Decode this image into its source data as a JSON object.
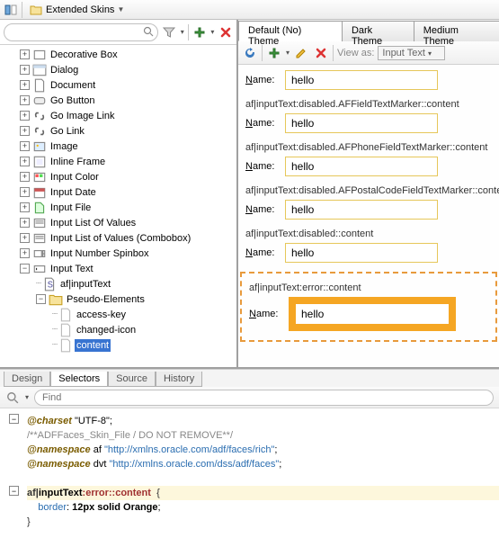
{
  "topbar": {
    "breadcrumb_label": "Extended Skins"
  },
  "left": {
    "search_placeholder": "",
    "tree": [
      {
        "depth": 0,
        "exp": "+",
        "icon": "box",
        "label": "Decorative Box"
      },
      {
        "depth": 0,
        "exp": "+",
        "icon": "dialog",
        "label": "Dialog"
      },
      {
        "depth": 0,
        "exp": "+",
        "icon": "doc",
        "label": "Document"
      },
      {
        "depth": 0,
        "exp": "+",
        "icon": "btn",
        "label": "Go Button"
      },
      {
        "depth": 0,
        "exp": "+",
        "icon": "link",
        "label": "Go Image Link"
      },
      {
        "depth": 0,
        "exp": "+",
        "icon": "link",
        "label": "Go Link"
      },
      {
        "depth": 0,
        "exp": "+",
        "icon": "img",
        "label": "Image"
      },
      {
        "depth": 0,
        "exp": "+",
        "icon": "frame",
        "label": "Inline Frame"
      },
      {
        "depth": 0,
        "exp": "+",
        "icon": "color",
        "label": "Input Color"
      },
      {
        "depth": 0,
        "exp": "+",
        "icon": "date",
        "label": "Input Date"
      },
      {
        "depth": 0,
        "exp": "+",
        "icon": "file",
        "label": "Input File"
      },
      {
        "depth": 0,
        "exp": "+",
        "icon": "list",
        "label": "Input List Of Values"
      },
      {
        "depth": 0,
        "exp": "+",
        "icon": "list",
        "label": "Input List of Values (Combobox)"
      },
      {
        "depth": 0,
        "exp": "+",
        "icon": "spin",
        "label": "Input Number Spinbox"
      },
      {
        "depth": 0,
        "exp": "-",
        "icon": "text",
        "label": "Input Text"
      },
      {
        "depth": 1,
        "exp": "",
        "icon": "sel",
        "label": "af|inputText"
      },
      {
        "depth": 1,
        "exp": "-",
        "icon": "folder",
        "label": "Pseudo-Elements"
      },
      {
        "depth": 2,
        "exp": "",
        "icon": "leaf",
        "label": "access-key"
      },
      {
        "depth": 2,
        "exp": "",
        "icon": "leaf",
        "label": "changed-icon"
      },
      {
        "depth": 2,
        "exp": "",
        "icon": "leaf",
        "label": "content",
        "selected": true
      }
    ]
  },
  "right": {
    "tabs": [
      "Default (No) Theme",
      "Dark Theme",
      "Medium Theme"
    ],
    "active_tab": 0,
    "viewas_label": "View as:",
    "viewas_value": "Input Text",
    "groups": [
      {
        "selector": "",
        "label": "Name:",
        "value": "hello",
        "style": "yellow"
      },
      {
        "selector": "af|inputText:disabled.AFFieldTextMarker::content",
        "label": "Name:",
        "value": "hello",
        "style": "yellow"
      },
      {
        "selector": "af|inputText:disabled.AFPhoneFieldTextMarker::content",
        "label": "Name:",
        "value": "hello",
        "style": "yellow"
      },
      {
        "selector": "af|inputText:disabled.AFPostalCodeFieldTextMarker::content",
        "label": "Name:",
        "value": "hello",
        "style": "yellow"
      },
      {
        "selector": "af|inputText:disabled::content",
        "label": "Name:",
        "value": "hello",
        "style": "yellow"
      }
    ],
    "error_group": {
      "selector": "af|inputText:error::content",
      "label": "Name:",
      "value": "hello"
    }
  },
  "bottom": {
    "tabs": [
      "Design",
      "Selectors",
      "Source",
      "History"
    ],
    "active_tab": 1,
    "find_placeholder": "Find",
    "code": {
      "charset": "@charset",
      "charset_val": "\"UTF-8\"",
      "comment": "/**ADFFaces_Skin_File / DO NOT REMOVE**/",
      "ns1_kw": "@namespace",
      "ns1_pfx": "af",
      "ns1_url": "\"http://xmlns.oracle.com/adf/faces/rich\"",
      "ns2_kw": "@namespace",
      "ns2_pfx": "dvt",
      "ns2_url": "\"http://xmlns.oracle.com/dss/adf/faces\"",
      "sel_af": "af|",
      "sel_comp": "inputText",
      "sel_state": ":error",
      "sel_pseudo": "::content",
      "prop": "border",
      "val": "12px solid Orange"
    }
  },
  "colors": {
    "yellow_border": "#e6c75a",
    "error_dash": "#e89a3c",
    "error_fill": "#f5a623",
    "tree_sel_bg": "#3874d1"
  }
}
